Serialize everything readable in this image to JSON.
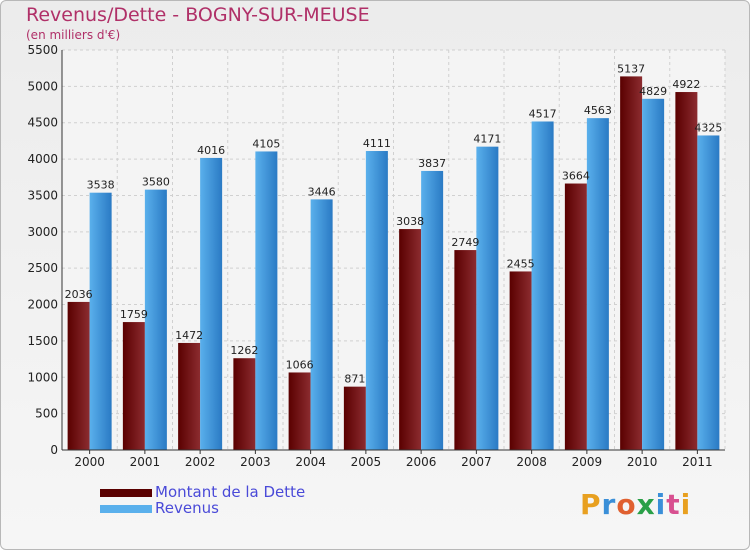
{
  "title": "Revenus/Dette - BOGNY-SUR-MEUSE",
  "subtitle": "(en milliers d'€)",
  "logo": {
    "text": "Proxiti",
    "colors": [
      "#e8a020",
      "#3a8fd8",
      "#e06030",
      "#2aa048",
      "#3a8fd8",
      "#d85090",
      "#e8a020"
    ]
  },
  "colors": {
    "dette_dark": "#5a0000",
    "dette_light": "#8c2c30",
    "revenus_dark": "#2a7ac4",
    "revenus_light": "#5ab0ec",
    "title": "#b03068",
    "legend_text": "#4a4ad8"
  },
  "chart_data": {
    "type": "bar",
    "title": "Revenus/Dette - BOGNY-SUR-MEUSE",
    "subtitle": "(en milliers d'€)",
    "categories": [
      "2000",
      "2001",
      "2002",
      "2003",
      "2004",
      "2005",
      "2006",
      "2007",
      "2008",
      "2009",
      "2010",
      "2011"
    ],
    "series": [
      {
        "name": "Montant de la Dette",
        "values": [
          2036,
          1759,
          1472,
          1262,
          1066,
          871,
          3038,
          2749,
          2455,
          3664,
          5137,
          4922
        ]
      },
      {
        "name": "Revenus",
        "values": [
          3538,
          3580,
          4016,
          4105,
          3446,
          4111,
          3837,
          4171,
          4517,
          4563,
          4829,
          4325
        ]
      }
    ],
    "ylim": [
      0,
      5500
    ],
    "yticks": [
      0,
      500,
      1000,
      1500,
      2000,
      2500,
      3000,
      3500,
      4000,
      4500,
      5000,
      5500
    ],
    "grid": true,
    "legend": "bottom-left"
  }
}
